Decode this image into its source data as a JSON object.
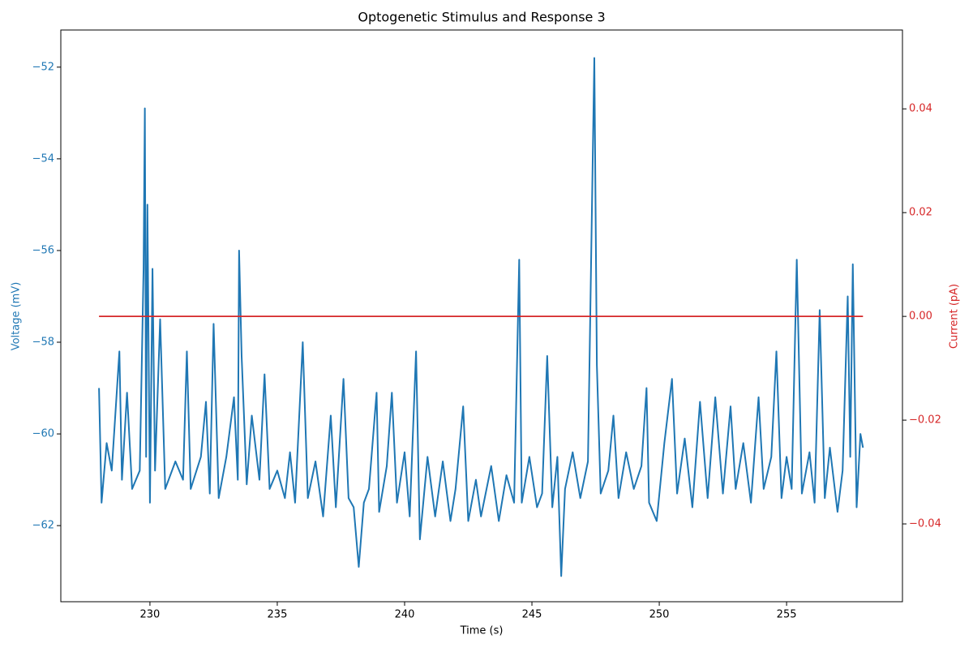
{
  "chart_data": {
    "type": "line",
    "title": "Optogenetic Stimulus and Response 3",
    "xlabel": "Time (s)",
    "ylabel": "Voltage (mV)",
    "y2label": "Current (pA)",
    "ylabel_color": "#1f77b4",
    "y2label_color": "#d62728",
    "xlim": [
      226.5,
      259.55
    ],
    "ylim": [
      -63.66,
      -51.19
    ],
    "y2lim": [
      -0.055,
      0.0552
    ],
    "xticks": [
      230,
      235,
      240,
      245,
      250,
      255
    ],
    "yticks": [
      {
        "value": -62,
        "label": "−62"
      },
      {
        "value": -60,
        "label": "−60"
      },
      {
        "value": -58,
        "label": "−58"
      },
      {
        "value": -56,
        "label": "−56"
      },
      {
        "value": -54,
        "label": "−54"
      },
      {
        "value": -52,
        "label": "−52"
      }
    ],
    "y2ticks": [
      {
        "value": -0.04,
        "label": "−0.04"
      },
      {
        "value": -0.02,
        "label": "−0.02"
      },
      {
        "value": 0,
        "label": "0.00"
      },
      0.02,
      0.04
    ],
    "series": [
      {
        "color": "#1f77b4",
        "axis": "y",
        "x": [
          228.0,
          228.1,
          228.3,
          228.5,
          228.8,
          228.9,
          229.1,
          229.3,
          229.6,
          229.75,
          229.8,
          229.85,
          229.9,
          230.0,
          230.1,
          230.2,
          230.4,
          230.6,
          231.0,
          231.3,
          231.45,
          231.6,
          232.0,
          232.2,
          232.35,
          232.5,
          232.7,
          233.0,
          233.3,
          233.45,
          233.5,
          233.6,
          233.8,
          234.0,
          234.3,
          234.5,
          234.7,
          235.0,
          235.3,
          235.5,
          235.7,
          236.0,
          236.2,
          236.5,
          236.8,
          237.1,
          237.3,
          237.6,
          237.8,
          238.0,
          238.2,
          238.4,
          238.6,
          238.9,
          239.0,
          239.3,
          239.5,
          239.7,
          240.0,
          240.2,
          240.45,
          240.6,
          240.9,
          241.2,
          241.5,
          241.8,
          242.0,
          242.3,
          242.5,
          242.8,
          243.0,
          243.4,
          243.7,
          244.0,
          244.3,
          244.5,
          244.6,
          244.9,
          245.2,
          245.4,
          245.6,
          245.8,
          246.0,
          246.15,
          246.3,
          246.6,
          246.9,
          247.2,
          247.45,
          247.55,
          247.7,
          248.0,
          248.2,
          248.4,
          248.7,
          249.0,
          249.3,
          249.5,
          249.6,
          249.9,
          250.2,
          250.5,
          250.7,
          251.0,
          251.3,
          251.6,
          251.9,
          252.2,
          252.5,
          252.8,
          253.0,
          253.3,
          253.6,
          253.9,
          254.1,
          254.4,
          254.6,
          254.8,
          255.0,
          255.2,
          255.4,
          255.6,
          255.9,
          256.1,
          256.3,
          256.5,
          256.7,
          257.0,
          257.2,
          257.4,
          257.5,
          257.6,
          257.75,
          257.9,
          258.0
        ],
        "values": [
          -59.0,
          -61.5,
          -60.2,
          -60.8,
          -58.2,
          -61.0,
          -59.1,
          -61.2,
          -60.8,
          -56.4,
          -52.9,
          -60.5,
          -55.0,
          -61.5,
          -56.4,
          -60.8,
          -57.5,
          -61.2,
          -60.6,
          -61.0,
          -58.2,
          -61.2,
          -60.5,
          -59.3,
          -61.3,
          -57.6,
          -61.4,
          -60.5,
          -59.2,
          -61.0,
          -56.0,
          -58.3,
          -61.1,
          -59.6,
          -61.0,
          -58.7,
          -61.2,
          -60.8,
          -61.4,
          -60.4,
          -61.5,
          -58.0,
          -61.4,
          -60.6,
          -61.8,
          -59.6,
          -61.6,
          -58.8,
          -61.4,
          -61.6,
          -62.9,
          -61.5,
          -61.2,
          -59.1,
          -61.7,
          -60.7,
          -59.1,
          -61.5,
          -60.4,
          -61.8,
          -58.2,
          -62.3,
          -60.5,
          -61.8,
          -60.6,
          -61.9,
          -61.2,
          -59.4,
          -61.9,
          -61.0,
          -61.8,
          -60.7,
          -61.9,
          -60.9,
          -61.5,
          -56.2,
          -61.5,
          -60.5,
          -61.6,
          -61.3,
          -58.3,
          -61.6,
          -60.5,
          -63.1,
          -61.2,
          -60.4,
          -61.4,
          -60.6,
          -51.8,
          -58.5,
          -61.3,
          -60.8,
          -59.6,
          -61.4,
          -60.4,
          -61.2,
          -60.7,
          -59.0,
          -61.5,
          -61.9,
          -60.2,
          -58.8,
          -61.3,
          -60.1,
          -61.6,
          -59.3,
          -61.4,
          -59.2,
          -61.3,
          -59.4,
          -61.2,
          -60.2,
          -61.5,
          -59.2,
          -61.2,
          -60.5,
          -58.2,
          -61.4,
          -60.5,
          -61.2,
          -56.2,
          -61.3,
          -60.4,
          -61.5,
          -57.3,
          -61.4,
          -60.3,
          -61.7,
          -60.8,
          -57.0,
          -60.5,
          -56.3,
          -61.6,
          -60.0,
          -60.3
        ]
      },
      {
        "color": "#d62728",
        "axis": "y2",
        "x": [
          228.0,
          258.0
        ],
        "values": [
          0,
          0
        ]
      }
    ]
  }
}
